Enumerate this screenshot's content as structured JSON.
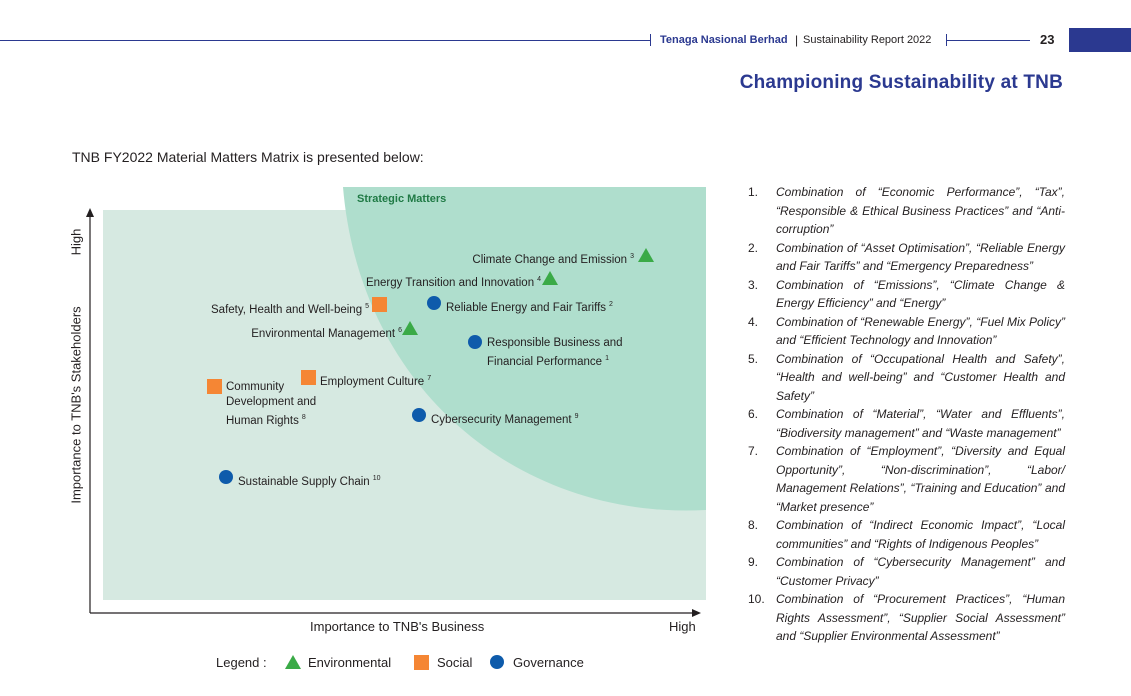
{
  "header": {
    "company": "Tenaga Nasional Berhad",
    "separator": "|",
    "report": "Sustainability Report 2022",
    "page_number": "23"
  },
  "title": "Championing Sustainability at TNB",
  "intro": "TNB FY2022 Material Matters Matrix is presented below:",
  "matrix": {
    "region_label": "Strategic Matters",
    "y_axis_label": "Importance to TNB's Stakeholders",
    "y_axis_high": "High",
    "x_axis_label": "Importance to TNB's Business",
    "x_axis_high": "High",
    "items": [
      {
        "label": "Climate Change and Emission",
        "ref": "3",
        "category": "environmental"
      },
      {
        "label": "Energy Transition and Innovation",
        "ref": "4",
        "category": "environmental"
      },
      {
        "label": "Safety, Health and Well-being",
        "ref": "5",
        "category": "social"
      },
      {
        "label": "Reliable Energy and Fair Tariffs",
        "ref": "2",
        "category": "governance"
      },
      {
        "label": "Environmental Management",
        "ref": "6",
        "category": "environmental"
      },
      {
        "label": "Responsible Business and",
        "label2": "Financial Performance",
        "ref": "1",
        "category": "governance"
      },
      {
        "label": "Employment Culture",
        "ref": "7",
        "category": "social"
      },
      {
        "label": "Community",
        "label2": "Development and",
        "label3": "Human Rights",
        "ref": "8",
        "category": "social"
      },
      {
        "label": "Cybersecurity Management",
        "ref": "9",
        "category": "governance"
      },
      {
        "label": "Sustainable Supply Chain",
        "ref": "10",
        "category": "governance"
      }
    ]
  },
  "legend": {
    "label": "Legend :",
    "environmental": "Environmental",
    "social": "Social",
    "governance": "Governance"
  },
  "colors": {
    "environmental": "#3aaa47",
    "social": "#f58634",
    "governance": "#0e5bab",
    "brand": "#2b3990",
    "matrix_bg": "#d6e9e1",
    "strategic_bg": "#afdecd"
  },
  "notes": [
    {
      "num": "1.",
      "text": "Combination of “Economic Performance”, “Tax”, “Responsible & Ethical Business Practices” and “Anti-corruption”"
    },
    {
      "num": "2.",
      "text": "Combination of “Asset Optimisation”, “Reliable Energy and Fair Tariffs” and “Emergency Preparedness”"
    },
    {
      "num": "3.",
      "text": "Combination of “Emissions”, “Climate Change & Energy Efficiency” and “Energy”"
    },
    {
      "num": "4.",
      "text": "Combination of “Renewable Energy”, “Fuel Mix Policy” and “Efficient Technology and Innovation”"
    },
    {
      "num": "5.",
      "text": "Combination of “Occupational Health and Safety”, “Health and well-being” and “Customer Health and Safety”"
    },
    {
      "num": "6.",
      "text": "Combination of “Material”, “Water and Effluents”, “Biodiversity management” and “Waste management”"
    },
    {
      "num": "7.",
      "text": "Combination of “Employment”, “Diversity and Equal Opportunity”, “Non-discrimination”, “Labor/ Management Relations”, “Training and Education” and “Market presence”"
    },
    {
      "num": "8.",
      "text": "Combination of “Indirect Economic Impact”, “Local communities” and “Rights of Indigenous Peoples”"
    },
    {
      "num": "9.",
      "text": "Combination of “Cybersecurity Management” and “Customer Privacy”"
    },
    {
      "num": "10.",
      "text": "Combination of “Procurement Practices”, “Human Rights Assessment”, “Supplier Social Assessment” and “Supplier Environmental Assessment”"
    }
  ]
}
